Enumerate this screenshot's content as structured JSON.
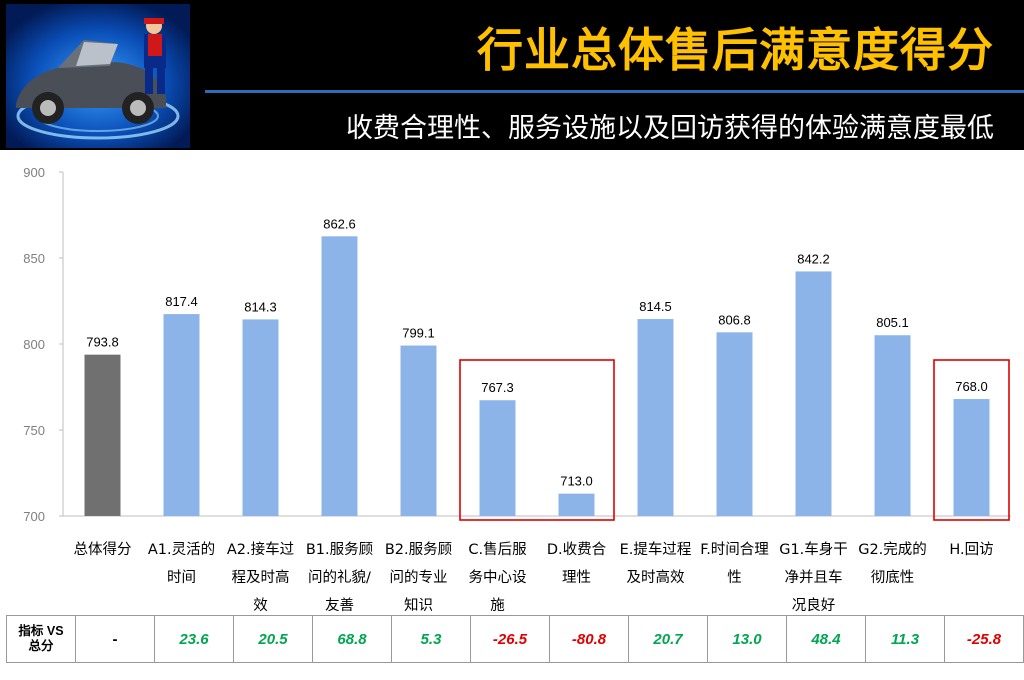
{
  "header": {
    "title": "行业总体售后满意度得分",
    "subtitle": "收费合理性、服务设施以及回访获得的体验满意度最低"
  },
  "chart_data": {
    "type": "bar",
    "categories": [
      "总体得分",
      "A1.灵活的时间",
      "A2.接车过程及时高效",
      "B1.服务顾问的礼貌/友善",
      "B2.服务顾问的专业知识",
      "C.售后服务中心设施",
      "D.收费合理性",
      "E.提车过程及时高效",
      "F.时间合理性",
      "G1.车身干净并且车况良好",
      "G2.完成的彻底性",
      "H.回访"
    ],
    "category_lines": [
      [
        "总体得分"
      ],
      [
        "A1.灵活的",
        "时间"
      ],
      [
        "A2.接车过",
        "程及时高",
        "效"
      ],
      [
        "B1.服务顾",
        "问的礼貌/",
        "友善"
      ],
      [
        "B2.服务顾",
        "问的专业",
        "知识"
      ],
      [
        "C.售后服",
        "务中心设",
        "施"
      ],
      [
        "D.收费合",
        "理性"
      ],
      [
        "E.提车过程",
        "及时高效"
      ],
      [
        "F.时间合理",
        "性"
      ],
      [
        "G1.车身干",
        "净并且车",
        "况良好"
      ],
      [
        "G2.完成的",
        "彻底性"
      ],
      [
        "H.回访"
      ]
    ],
    "values": [
      793.8,
      817.4,
      814.3,
      862.6,
      799.1,
      767.3,
      713.0,
      814.5,
      806.8,
      842.2,
      805.1,
      768.0
    ],
    "value_labels": [
      "793.8",
      "817.4",
      "814.3",
      "862.6",
      "799.1",
      "767.3",
      "713.0",
      "814.5",
      "806.8",
      "842.2",
      "805.1",
      "768.0"
    ],
    "ylim": [
      700,
      900
    ],
    "yticks": [
      "700",
      "750",
      "800",
      "850",
      "900"
    ],
    "highlight_index": 0,
    "highlight_color": "#707070",
    "bar_color": "#8DB4E8",
    "highlight_boxes": [
      [
        5,
        6
      ],
      [
        11,
        11
      ]
    ],
    "highlight_box_color": "#E00000",
    "grid": false
  },
  "table": {
    "row_header": "指标 VS 总分",
    "row_header_lines": [
      "指标 VS",
      "总分"
    ],
    "cells": [
      {
        "text": "-",
        "sign": "nil"
      },
      {
        "text": "23.6",
        "sign": "pos"
      },
      {
        "text": "20.5",
        "sign": "pos"
      },
      {
        "text": "68.8",
        "sign": "pos"
      },
      {
        "text": "5.3",
        "sign": "pos"
      },
      {
        "text": "-26.5",
        "sign": "neg"
      },
      {
        "text": "-80.8",
        "sign": "neg"
      },
      {
        "text": "20.7",
        "sign": "pos"
      },
      {
        "text": "13.0",
        "sign": "pos"
      },
      {
        "text": "48.4",
        "sign": "pos"
      },
      {
        "text": "11.3",
        "sign": "pos"
      },
      {
        "text": "-25.8",
        "sign": "neg"
      }
    ],
    "positive_color": "#00A650",
    "negative_color": "#E00000"
  },
  "logo": {
    "icon": "car-mechanic-logo"
  }
}
